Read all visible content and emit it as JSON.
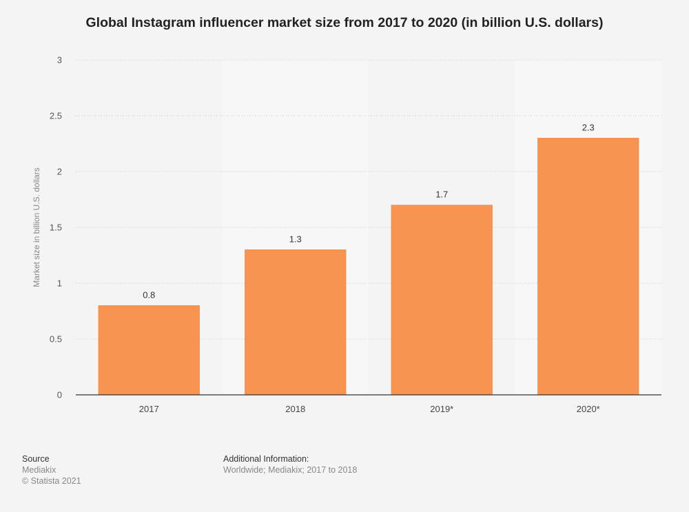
{
  "chart_data": {
    "type": "bar",
    "title": "Global Instagram influencer market size from 2017 to 2020 (in billion U.S. dollars)",
    "categories": [
      "2017",
      "2018",
      "2019*",
      "2020*"
    ],
    "values": [
      0.8,
      1.3,
      1.7,
      2.3
    ],
    "value_labels": [
      "0.8",
      "1.3",
      "1.7",
      "2.3"
    ],
    "xlabel": "",
    "ylabel": "Market size in billion U.S. dollars",
    "ylim": [
      0,
      3
    ],
    "yticks": [
      0,
      0.5,
      1,
      1.5,
      2,
      2.5,
      3
    ],
    "ytick_labels": [
      "0",
      "0.5",
      "1",
      "1.5",
      "2",
      "2.5",
      "3"
    ],
    "bar_color": "#f79452",
    "grid": true
  },
  "footer": {
    "source_heading": "Source",
    "source_name": "Mediakix",
    "copyright": "© Statista 2021",
    "additional_heading": "Additional Information:",
    "additional_text": "Worldwide; Mediakix; 2017 to 2018"
  }
}
